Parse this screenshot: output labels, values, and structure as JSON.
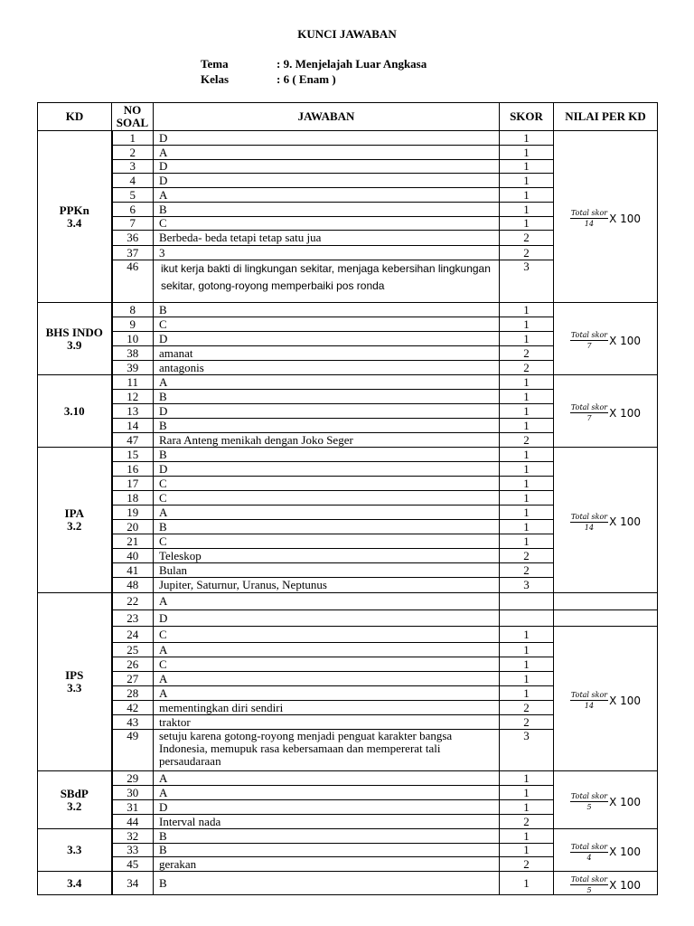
{
  "title": "KUNCI JAWABAN",
  "meta": {
    "tema_label": "Tema",
    "tema_value": ": 9. Menjelajah Luar Angkasa",
    "kelas_label": "Kelas",
    "kelas_value": ": 6 ( Enam )"
  },
  "table": {
    "headers": [
      "KD",
      "NO SOAL",
      "JAWABAN",
      "SKOR",
      "NILAI PER KD"
    ],
    "formula": {
      "numerator": "Total skor",
      "multiplier": "X 100"
    },
    "groups": [
      {
        "kd": [
          "PPKn",
          "3.4"
        ],
        "denominator": "14",
        "nilai_blank_rows": 0,
        "rows": [
          {
            "no": "1",
            "jawaban": "D",
            "skor": "1"
          },
          {
            "no": "2",
            "jawaban": "A",
            "skor": "1"
          },
          {
            "no": "3",
            "jawaban": "D",
            "skor": "1"
          },
          {
            "no": "4",
            "jawaban": "D",
            "skor": "1"
          },
          {
            "no": "5",
            "jawaban": "A",
            "skor": "1"
          },
          {
            "no": "6",
            "jawaban": "B",
            "skor": "1"
          },
          {
            "no": "7",
            "jawaban": "C",
            "skor": "1"
          },
          {
            "no": "36",
            "jawaban": "Berbeda- beda tetapi tetap satu jua",
            "skor": "2"
          },
          {
            "no": "37",
            "jawaban": "3",
            "skor": "2"
          },
          {
            "no": "46",
            "jawaban": "ikut kerja bakti di lingkungan sekitar, menjaga kebersihan lingkungan sekitar, gotong-royong memperbaiki pos ronda",
            "skor": "3"
          }
        ]
      },
      {
        "kd": [
          "BHS INDO",
          "3.9"
        ],
        "denominator": "7",
        "nilai_blank_rows": 0,
        "rows": [
          {
            "no": "8",
            "jawaban": "B",
            "skor": "1"
          },
          {
            "no": "9",
            "jawaban": "C",
            "skor": "1"
          },
          {
            "no": "10",
            "jawaban": "D",
            "skor": "1"
          },
          {
            "no": "38",
            "jawaban": "amanat",
            "skor": "2"
          },
          {
            "no": "39",
            "jawaban": "antagonis",
            "skor": "2"
          }
        ]
      },
      {
        "kd": [
          "3.10"
        ],
        "denominator": "7",
        "nilai_blank_rows": 0,
        "rows": [
          {
            "no": "11",
            "jawaban": "A",
            "skor": "1"
          },
          {
            "no": "12",
            "jawaban": "B",
            "skor": "1"
          },
          {
            "no": "13",
            "jawaban": "D",
            "skor": "1"
          },
          {
            "no": "14",
            "jawaban": "B",
            "skor": "1"
          },
          {
            "no": "47",
            "jawaban": "Rara Anteng menikah dengan Joko Seger",
            "skor": "2"
          }
        ]
      },
      {
        "kd": [
          "IPA",
          "3.2"
        ],
        "denominator": "14",
        "nilai_blank_rows": 0,
        "rows": [
          {
            "no": "15",
            "jawaban": "B",
            "skor": "1"
          },
          {
            "no": "16",
            "jawaban": "D",
            "skor": "1"
          },
          {
            "no": "17",
            "jawaban": "C",
            "skor": "1"
          },
          {
            "no": "18",
            "jawaban": "C",
            "skor": "1"
          },
          {
            "no": "19",
            "jawaban": "A",
            "skor": "1"
          },
          {
            "no": "20",
            "jawaban": "B",
            "skor": "1"
          },
          {
            "no": "21",
            "jawaban": "C",
            "skor": "1"
          },
          {
            "no": "40",
            "jawaban": "Teleskop",
            "skor": "2"
          },
          {
            "no": "41",
            "jawaban": "Bulan",
            "skor": "2"
          },
          {
            "no": "48",
            "jawaban": "Jupiter, Saturnur, Uranus, Neptunus",
            "skor": "3"
          }
        ]
      },
      {
        "kd": [
          "IPS",
          "3.3"
        ],
        "denominator": "14",
        "nilai_blank_rows": 2,
        "rows": [
          {
            "no": "22",
            "jawaban": "A",
            "skor": ""
          },
          {
            "no": "23",
            "jawaban": "D",
            "skor": ""
          },
          {
            "no": "24",
            "jawaban": "C",
            "skor": "1"
          },
          {
            "no": "25",
            "jawaban": "A",
            "skor": "1"
          },
          {
            "no": "26",
            "jawaban": "C",
            "skor": "1"
          },
          {
            "no": "27",
            "jawaban": "A",
            "skor": "1"
          },
          {
            "no": "28",
            "jawaban": "A",
            "skor": "1"
          },
          {
            "no": "42",
            "jawaban": "mementingkan diri sendiri",
            "skor": "2"
          },
          {
            "no": "43",
            "jawaban": "traktor",
            "skor": "2"
          },
          {
            "no": "49",
            "jawaban": "setuju karena gotong-royong menjadi penguat karakter bangsa Indonesia, memupuk rasa kebersamaan dan mempererat tali persaudaraan",
            "skor": "3"
          }
        ]
      },
      {
        "kd": [
          "SBdP",
          "3.2"
        ],
        "denominator": "5",
        "nilai_blank_rows": 0,
        "rows": [
          {
            "no": "29",
            "jawaban": "A",
            "skor": "1"
          },
          {
            "no": "30",
            "jawaban": "A",
            "skor": "1"
          },
          {
            "no": "31",
            "jawaban": "D",
            "skor": "1"
          },
          {
            "no": "44",
            "jawaban": "Interval nada",
            "skor": "2"
          }
        ]
      },
      {
        "kd": [
          "3.3"
        ],
        "denominator": "4",
        "nilai_blank_rows": 0,
        "rows": [
          {
            "no": "32",
            "jawaban": "B",
            "skor": "1"
          },
          {
            "no": "33",
            "jawaban": "B",
            "skor": "1"
          },
          {
            "no": "45",
            "jawaban": "gerakan",
            "skor": "2"
          }
        ]
      },
      {
        "kd": [
          "3.4"
        ],
        "denominator": "5",
        "nilai_blank_rows": 0,
        "rows": [
          {
            "no": "34",
            "jawaban": "B",
            "skor": "1"
          }
        ]
      }
    ]
  }
}
